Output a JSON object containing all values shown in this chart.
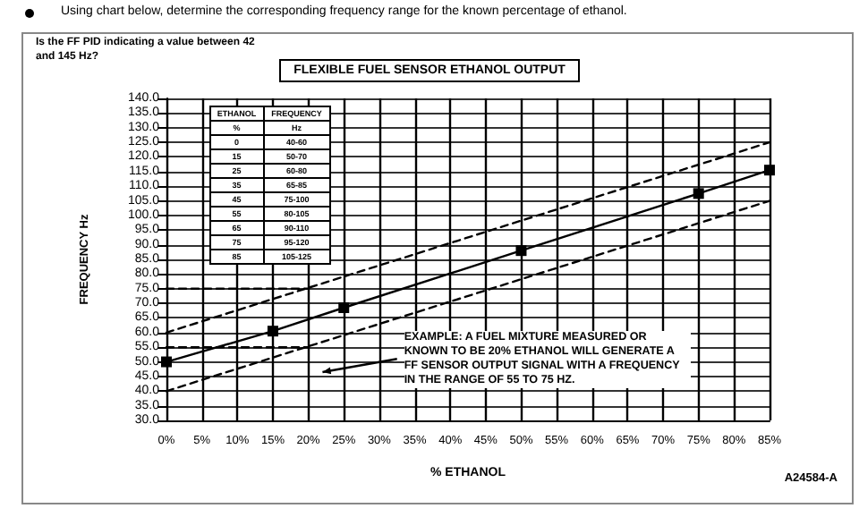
{
  "chart_data": {
    "type": "line",
    "title": "FLEXIBLE FUEL SENSOR ETHANOL OUTPUT",
    "xlabel": "% ETHANOL",
    "ylabel": "FREQUENCY Hz",
    "annotations": [
      "Using chart below, determine the corresponding frequency range for the known percentage of ethanol.",
      "Is the FF PID indicating a value between 42 and 145 Hz?",
      "EXAMPLE: A FUEL MIXTURE MEASURED OR KNOWN TO BE 20% ETHANOL WILL GENERATE A FF SENSOR OUTPUT SIGNAL WITH A FREQUENCY IN THE RANGE OF 55 TO 75 HZ.",
      "A24584-A",
      "ETHANOL",
      "FREQUENCY",
      "%",
      "Hz",
      "0",
      "40-60",
      "15",
      "50-70",
      "25",
      "60-80",
      "35",
      "65-85",
      "45",
      "75-100",
      "55",
      "80-105",
      "65",
      "90-110",
      "75",
      "95-120",
      "85",
      "105-125"
    ],
    "series": [
      {
        "color": "#000000",
        "x": [
          0,
          15,
          25,
          50,
          75,
          85
        ],
        "values": [
          50,
          60.5,
          68.5,
          88,
          107.5,
          115.5
        ],
        "marker": "square",
        "line_style": "solid"
      },
      {
        "color": "#000000",
        "x": [
          0,
          85
        ],
        "values": [
          60,
          125
        ],
        "marker": "none",
        "line_style": "dashed"
      },
      {
        "color": "#000000",
        "x": [
          0,
          85
        ],
        "values": [
          40,
          105
        ],
        "marker": "none",
        "line_style": "dashed"
      },
      {
        "color": "#000000",
        "x": [
          0,
          20
        ],
        "values": [
          75,
          75
        ],
        "marker": "none",
        "line_style": "dashed"
      },
      {
        "color": "#000000",
        "x": [
          0,
          20
        ],
        "values": [
          55,
          55
        ],
        "marker": "none",
        "line_style": "dashed"
      }
    ],
    "xlim": [
      0,
      85
    ],
    "xticks": [
      {
        "value": 0,
        "label": "0%"
      },
      {
        "value": 5,
        "label": "5%"
      },
      {
        "value": 10,
        "label": "10%"
      },
      {
        "value": 15,
        "label": "15%"
      },
      {
        "value": 20,
        "label": "20%"
      },
      {
        "value": 25,
        "label": "25%"
      },
      {
        "value": 30,
        "label": "30%"
      },
      {
        "value": 35,
        "label": "35%"
      },
      {
        "value": 40,
        "label": "40%"
      },
      {
        "value": 45,
        "label": "45%"
      },
      {
        "value": 50,
        "label": "50%"
      },
      {
        "value": 55,
        "label": "55%"
      },
      {
        "value": 60,
        "label": "60%"
      },
      {
        "value": 65,
        "label": "65%"
      },
      {
        "value": 70,
        "label": "70%"
      },
      {
        "value": 75,
        "label": "75%"
      },
      {
        "value": 80,
        "label": "80%"
      },
      {
        "value": 85,
        "label": "85%"
      }
    ],
    "ylim": [
      30,
      140
    ],
    "yticks": [
      {
        "value": 30,
        "label": "30.0"
      },
      {
        "value": 35,
        "label": "35.0"
      },
      {
        "value": 40,
        "label": "40.0"
      },
      {
        "value": 45,
        "label": "45.0"
      },
      {
        "value": 50,
        "label": "50.0"
      },
      {
        "value": 55,
        "label": "55.0"
      },
      {
        "value": 60,
        "label": "60.0"
      },
      {
        "value": 65,
        "label": "65.0"
      },
      {
        "value": 70,
        "label": "70.0"
      },
      {
        "value": 75,
        "label": "75.0"
      },
      {
        "value": 80,
        "label": "80.0"
      },
      {
        "value": 85,
        "label": "85.0"
      },
      {
        "value": 90,
        "label": "90.0"
      },
      {
        "value": 95,
        "label": "95.0"
      },
      {
        "value": 100,
        "label": "100.0"
      },
      {
        "value": 105,
        "label": "105.0"
      },
      {
        "value": 110,
        "label": "110.0"
      },
      {
        "value": 115,
        "label": "115.0"
      },
      {
        "value": 120,
        "label": "120.0"
      },
      {
        "value": 125,
        "label": "125.0"
      },
      {
        "value": 130,
        "label": "130.0"
      },
      {
        "value": 135,
        "label": "135.0"
      },
      {
        "value": 140,
        "label": "140.0"
      }
    ],
    "grid": true
  }
}
